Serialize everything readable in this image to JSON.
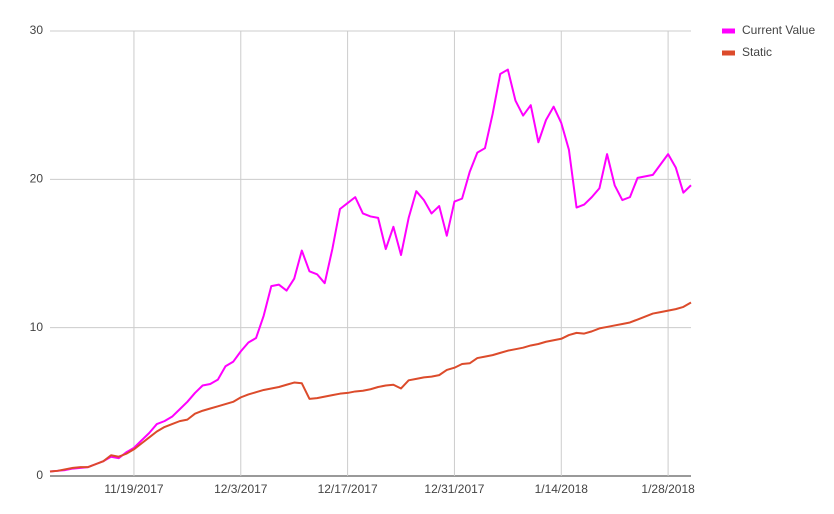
{
  "chart_data": {
    "type": "line",
    "x": [
      "2017-11-08",
      "2017-11-09",
      "2017-11-10",
      "2017-11-11",
      "2017-11-12",
      "2017-11-13",
      "2017-11-14",
      "2017-11-15",
      "2017-11-16",
      "2017-11-17",
      "2017-11-18",
      "2017-11-19",
      "2017-11-20",
      "2017-11-21",
      "2017-11-22",
      "2017-11-23",
      "2017-11-24",
      "2017-11-25",
      "2017-11-26",
      "2017-11-27",
      "2017-11-28",
      "2017-11-29",
      "2017-11-30",
      "2017-12-01",
      "2017-12-02",
      "2017-12-03",
      "2017-12-04",
      "2017-12-05",
      "2017-12-06",
      "2017-12-07",
      "2017-12-08",
      "2017-12-09",
      "2017-12-10",
      "2017-12-11",
      "2017-12-12",
      "2017-12-13",
      "2017-12-14",
      "2017-12-15",
      "2017-12-16",
      "2017-12-17",
      "2017-12-18",
      "2017-12-19",
      "2017-12-20",
      "2017-12-21",
      "2017-12-22",
      "2017-12-23",
      "2017-12-24",
      "2017-12-25",
      "2017-12-26",
      "2017-12-27",
      "2017-12-28",
      "2017-12-29",
      "2017-12-30",
      "2017-12-31",
      "2018-01-01",
      "2018-01-02",
      "2018-01-03",
      "2018-01-04",
      "2018-01-05",
      "2018-01-06",
      "2018-01-07",
      "2018-01-08",
      "2018-01-09",
      "2018-01-10",
      "2018-01-11",
      "2018-01-12",
      "2018-01-13",
      "2018-01-14",
      "2018-01-15",
      "2018-01-16",
      "2018-01-17",
      "2018-01-18",
      "2018-01-19",
      "2018-01-20",
      "2018-01-21",
      "2018-01-22",
      "2018-01-23",
      "2018-01-24",
      "2018-01-25",
      "2018-01-26",
      "2018-01-27",
      "2018-01-28",
      "2018-01-29",
      "2018-01-30",
      "2018-01-31"
    ],
    "series": [
      {
        "name": "Current Value",
        "color": "#ff00ff",
        "values": [
          0.3,
          0.35,
          0.4,
          0.5,
          0.55,
          0.6,
          0.8,
          1.0,
          1.3,
          1.2,
          1.6,
          1.9,
          2.4,
          2.9,
          3.5,
          3.7,
          4.0,
          4.5,
          5.0,
          5.6,
          6.1,
          6.2,
          6.5,
          7.4,
          7.7,
          8.4,
          9.0,
          9.3,
          10.8,
          12.8,
          12.9,
          12.5,
          13.3,
          15.2,
          13.8,
          13.6,
          13.0,
          15.3,
          18.0,
          18.4,
          18.8,
          17.7,
          17.5,
          17.4,
          15.3,
          16.8,
          14.9,
          17.4,
          19.2,
          18.6,
          17.7,
          18.2,
          16.2,
          18.5,
          18.7,
          20.5,
          21.8,
          22.1,
          24.4,
          27.1,
          27.4,
          25.3,
          24.3,
          25.0,
          22.5,
          24.0,
          24.9,
          23.8,
          22.0,
          18.1,
          18.3,
          18.8,
          19.4,
          21.7,
          19.6,
          18.6,
          18.8,
          20.1,
          20.2,
          20.3,
          21.0,
          21.7,
          20.8,
          19.1,
          19.6
        ]
      },
      {
        "name": "Static",
        "color": "#dc4b2b",
        "values": [
          0.3,
          0.35,
          0.45,
          0.55,
          0.6,
          0.6,
          0.8,
          1.0,
          1.4,
          1.3,
          1.5,
          1.8,
          2.2,
          2.6,
          3.0,
          3.3,
          3.5,
          3.7,
          3.8,
          4.2,
          4.4,
          4.55,
          4.7,
          4.85,
          5.0,
          5.3,
          5.5,
          5.65,
          5.8,
          5.9,
          6.0,
          6.15,
          6.3,
          6.25,
          5.2,
          5.25,
          5.35,
          5.45,
          5.55,
          5.6,
          5.7,
          5.75,
          5.85,
          6.0,
          6.1,
          6.15,
          5.9,
          6.45,
          6.55,
          6.65,
          6.7,
          6.8,
          7.15,
          7.3,
          7.55,
          7.6,
          7.95,
          8.05,
          8.15,
          8.3,
          8.45,
          8.55,
          8.65,
          8.8,
          8.9,
          9.05,
          9.15,
          9.25,
          9.5,
          9.65,
          9.6,
          9.75,
          9.95,
          10.05,
          10.15,
          10.25,
          10.35,
          10.55,
          10.75,
          10.95,
          11.05,
          11.15,
          11.25,
          11.4,
          11.7
        ]
      }
    ],
    "xlim": [
      "2017-11-08",
      "2018-01-31"
    ],
    "xticks": [
      {
        "value": "2017-11-19",
        "label": "11/19/2017"
      },
      {
        "value": "2017-12-03",
        "label": "12/3/2017"
      },
      {
        "value": "2017-12-17",
        "label": "12/17/2017"
      },
      {
        "value": "2017-12-31",
        "label": "12/31/2017"
      },
      {
        "value": "2018-01-14",
        "label": "1/14/2018"
      },
      {
        "value": "2018-01-28",
        "label": "1/28/2018"
      }
    ],
    "ylim": [
      0,
      30
    ],
    "yticks": [
      0,
      10,
      20,
      30
    ],
    "grid": true,
    "legend": "right"
  }
}
